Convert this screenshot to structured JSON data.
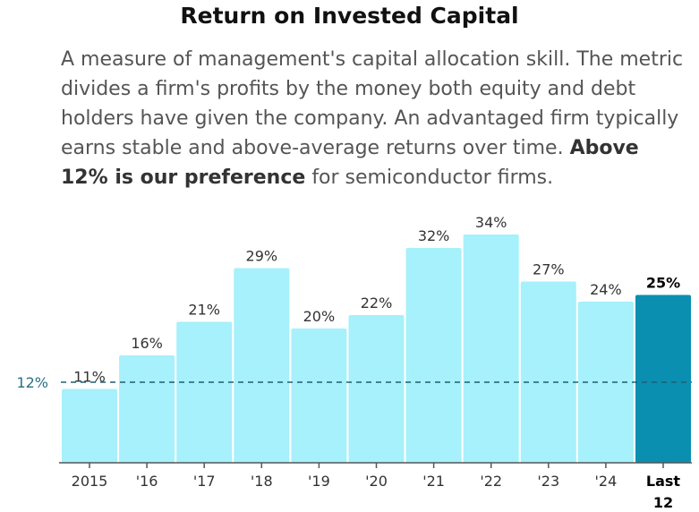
{
  "title": "Return on Invested Capital",
  "description": {
    "intro": "A measure of management's capital allocation skill. The metric divides a firm's profits by the money both equity and debt holders have given the company. An advantaged firm typically earns stable and above-average returns over time.",
    "emphasis": "Above 12% is our preference",
    "outro": "for semiconductor firms."
  },
  "colors": {
    "bar": "#a6f1fb",
    "highlight_bar": "#0a8fb0",
    "threshold_line": "#1f5f73",
    "threshold_label": "#2a6f86",
    "text": "#333333"
  },
  "chart_data": {
    "type": "bar",
    "title": "Return on Invested Capital",
    "categories": [
      "2015",
      "'16",
      "'17",
      "'18",
      "'19",
      "'20",
      "'21",
      "'22",
      "'23",
      "'24",
      "Last 12"
    ],
    "values": [
      11,
      16,
      21,
      29,
      20,
      22,
      32,
      34,
      27,
      24,
      25
    ],
    "labels": [
      "11%",
      "16%",
      "21%",
      "29%",
      "20%",
      "22%",
      "32%",
      "34%",
      "27%",
      "24%",
      "25%"
    ],
    "highlight_index": 10,
    "threshold": {
      "value": 12,
      "label": "12%",
      "style": "dashed"
    },
    "ylim": [
      0,
      34
    ],
    "grid": false,
    "xlabel": "",
    "ylabel": ""
  }
}
